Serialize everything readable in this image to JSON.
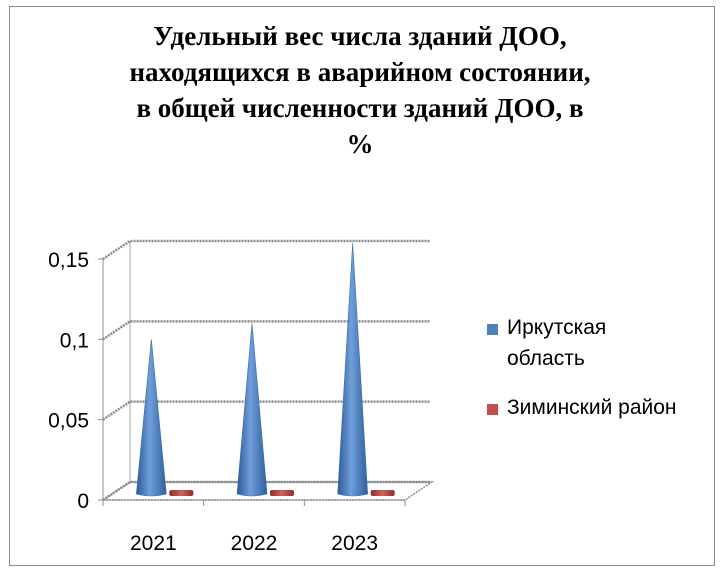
{
  "chart_data": {
    "type": "bar",
    "bar_shape": "cone",
    "title_lines": [
      "Удельный вес числа зданий ДОО,",
      "находящихся в аварийном состоянии,",
      "в общей численности зданий ДОО, в",
      "%"
    ],
    "categories": [
      "2021",
      "2022",
      "2023"
    ],
    "series": [
      {
        "name": "Иркутская область",
        "values": [
          0.09,
          0.1,
          0.15
        ],
        "color": "#4f81bd"
      },
      {
        "name": "Зиминский район",
        "values": [
          0,
          0,
          0
        ],
        "color": "#c0504d"
      }
    ],
    "y_ticks": [
      "0",
      "0,05",
      "0,1",
      "0,15"
    ],
    "ylim": [
      0,
      0.15
    ],
    "grid": true,
    "legend_position": "right"
  },
  "legend": {
    "irkutsk_line1": "Иркутская",
    "irkutsk_line2": "область",
    "zima": "Зиминский район"
  }
}
